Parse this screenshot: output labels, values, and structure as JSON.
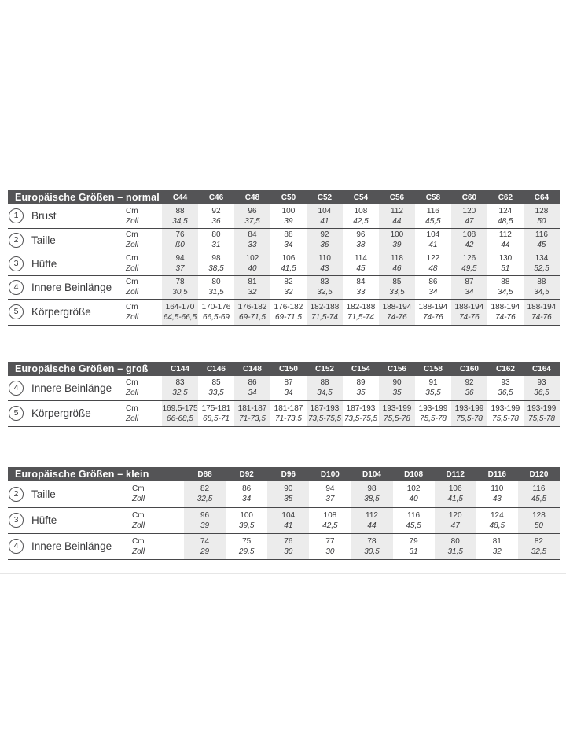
{
  "colors": {
    "header_bg": "#545456",
    "header_text": "#ffffff",
    "body_text": "#39393b",
    "column_shade": "#ececec",
    "row_line": "#48484a"
  },
  "units": {
    "cm": "Cm",
    "zoll": "Zoll"
  },
  "tables": [
    {
      "id": "normal",
      "title": "Europäische Größen – normal",
      "columns": [
        "C44",
        "C46",
        "C48",
        "C50",
        "C52",
        "C54",
        "C56",
        "C58",
        "C60",
        "C62",
        "C64"
      ],
      "rows": [
        {
          "number": "1",
          "label": "Brust",
          "cm": [
            "88",
            "92",
            "96",
            "100",
            "104",
            "108",
            "112",
            "116",
            "120",
            "124",
            "128"
          ],
          "zoll": [
            "34,5",
            "36",
            "37,5",
            "39",
            "41",
            "42,5",
            "44",
            "45,5",
            "47",
            "48,5",
            "50"
          ]
        },
        {
          "number": "2",
          "label": "Taille",
          "cm": [
            "76",
            "80",
            "84",
            "88",
            "92",
            "96",
            "100",
            "104",
            "108",
            "112",
            "116"
          ],
          "zoll": [
            "ß0",
            "31",
            "33",
            "34",
            "36",
            "38",
            "39",
            "41",
            "42",
            "44",
            "45"
          ]
        },
        {
          "number": "3",
          "label": "Hüfte",
          "cm": [
            "94",
            "98",
            "102",
            "106",
            "110",
            "114",
            "118",
            "122",
            "126",
            "130",
            "134"
          ],
          "zoll": [
            "37",
            "38,5",
            "40",
            "41,5",
            "43",
            "45",
            "46",
            "48",
            "49,5",
            "51",
            "52,5"
          ]
        },
        {
          "number": "4",
          "label": "Innere Beinlänge",
          "cm": [
            "78",
            "80",
            "81",
            "82",
            "83",
            "84",
            "85",
            "86",
            "87",
            "88",
            "88"
          ],
          "zoll": [
            "30,5",
            "31,5",
            "32",
            "32",
            "32,5",
            "33",
            "33,5",
            "34",
            "34",
            "34,5",
            "34,5"
          ]
        },
        {
          "number": "5",
          "label": "Körpergröße",
          "cm": [
            "164-170",
            "170-176",
            "176-182",
            "176-182",
            "182-188",
            "182-188",
            "188-194",
            "188-194",
            "188-194",
            "188-194",
            "188-194"
          ],
          "zoll": [
            "64,5-66,5",
            "66,5-69",
            "69-71,5",
            "69-71,5",
            "71,5-74",
            "71,5-74",
            "74-76",
            "74-76",
            "74-76",
            "74-76",
            "74-76"
          ]
        }
      ]
    },
    {
      "id": "gross",
      "title": "Europäische Größen – groß",
      "columns": [
        "C144",
        "C146",
        "C148",
        "C150",
        "C152",
        "C154",
        "C156",
        "C158",
        "C160",
        "C162",
        "C164"
      ],
      "rows": [
        {
          "number": "4",
          "label": "Innere Beinlänge",
          "cm": [
            "83",
            "85",
            "86",
            "87",
            "88",
            "89",
            "90",
            "91",
            "92",
            "93",
            "93"
          ],
          "zoll": [
            "32,5",
            "33,5",
            "34",
            "34",
            "34,5",
            "35",
            "35",
            "35,5",
            "36",
            "36,5",
            "36,5"
          ]
        },
        {
          "number": "5",
          "label": "Körpergröße",
          "cm": [
            "169,5-175",
            "175-181",
            "181-187",
            "181-187",
            "187-193",
            "187-193",
            "193-199",
            "193-199",
            "193-199",
            "193-199",
            "193-199"
          ],
          "zoll": [
            "66-68,5",
            "68,5-71",
            "71-73,5",
            "71-73,5",
            "73,5-75,5",
            "73,5-75,5",
            "75,5-78",
            "75,5-78",
            "75,5-78",
            "75,5-78",
            "75,5-78"
          ]
        }
      ]
    },
    {
      "id": "klein",
      "title": "Europäische Größen – klein",
      "columns": [
        "D88",
        "D92",
        "D96",
        "D100",
        "D104",
        "D108",
        "D112",
        "D116",
        "D120"
      ],
      "rows": [
        {
          "number": "2",
          "label": "Taille",
          "cm": [
            "82",
            "86",
            "90",
            "94",
            "98",
            "102",
            "106",
            "110",
            "116"
          ],
          "zoll": [
            "32,5",
            "34",
            "35",
            "37",
            "38,5",
            "40",
            "41,5",
            "43",
            "45,5"
          ]
        },
        {
          "number": "3",
          "label": "Hüfte",
          "cm": [
            "96",
            "100",
            "104",
            "108",
            "112",
            "116",
            "120",
            "124",
            "128"
          ],
          "zoll": [
            "39",
            "39,5",
            "41",
            "42,5",
            "44",
            "45,5",
            "47",
            "48,5",
            "50"
          ]
        },
        {
          "number": "4",
          "label": "Innere Beinlänge",
          "cm": [
            "74",
            "75",
            "76",
            "77",
            "78",
            "79",
            "80",
            "81",
            "82"
          ],
          "zoll": [
            "29",
            "29,5",
            "30",
            "30",
            "30,5",
            "31",
            "31,5",
            "32",
            "32,5"
          ]
        }
      ]
    }
  ]
}
